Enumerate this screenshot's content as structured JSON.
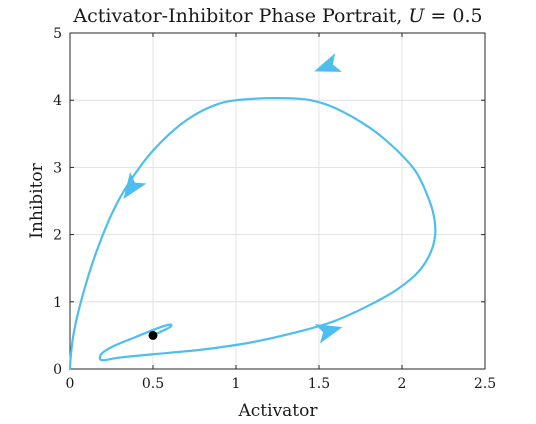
{
  "chart_data": {
    "type": "line",
    "title_prefix": "Activator-Inhibitor Phase Portrait, ",
    "title_var": "U",
    "title_rest": " = 0.5",
    "xlabel": "Activator",
    "ylabel": "Inhibitor",
    "xlim": [
      0,
      2.5
    ],
    "ylim": [
      0,
      5
    ],
    "xticks": [
      "0",
      "0.5",
      "1",
      "1.5",
      "2",
      "2.5"
    ],
    "yticks": [
      "0",
      "1",
      "2",
      "3",
      "4",
      "5"
    ],
    "grid": true,
    "colors": {
      "trajectory": "#4DBEEE",
      "fixed_point": "#000000"
    },
    "trajectory": {
      "x": [
        0.0,
        0.005,
        0.02,
        0.05,
        0.1,
        0.16,
        0.25,
        0.35,
        0.5,
        0.7,
        0.9,
        1.1,
        1.3,
        1.45,
        1.6,
        1.8,
        1.95,
        2.08,
        2.15,
        2.19,
        2.2,
        2.17,
        2.1,
        1.98,
        1.82,
        1.6,
        1.4,
        1.1,
        0.8,
        0.5,
        0.3,
        0.2,
        0.18,
        0.2,
        0.28,
        0.4,
        0.52,
        0.6,
        0.6,
        0.5
      ],
      "y": [
        0.0,
        0.2,
        0.5,
        0.85,
        1.3,
        1.75,
        2.3,
        2.75,
        3.25,
        3.7,
        3.95,
        4.02,
        4.03,
        4.0,
        3.88,
        3.6,
        3.3,
        2.95,
        2.6,
        2.3,
        2.0,
        1.72,
        1.45,
        1.2,
        0.97,
        0.72,
        0.57,
        0.4,
        0.29,
        0.22,
        0.17,
        0.13,
        0.17,
        0.25,
        0.36,
        0.48,
        0.6,
        0.66,
        0.62,
        0.5
      ]
    },
    "arrows": [
      {
        "x": 1.55,
        "y": 4.5,
        "angle": 200
      },
      {
        "x": 0.37,
        "y": 2.7,
        "angle": 235
      },
      {
        "x": 1.56,
        "y": 0.57,
        "angle": 15
      }
    ],
    "fixed_point": {
      "x": 0.5,
      "y": 0.5
    }
  }
}
